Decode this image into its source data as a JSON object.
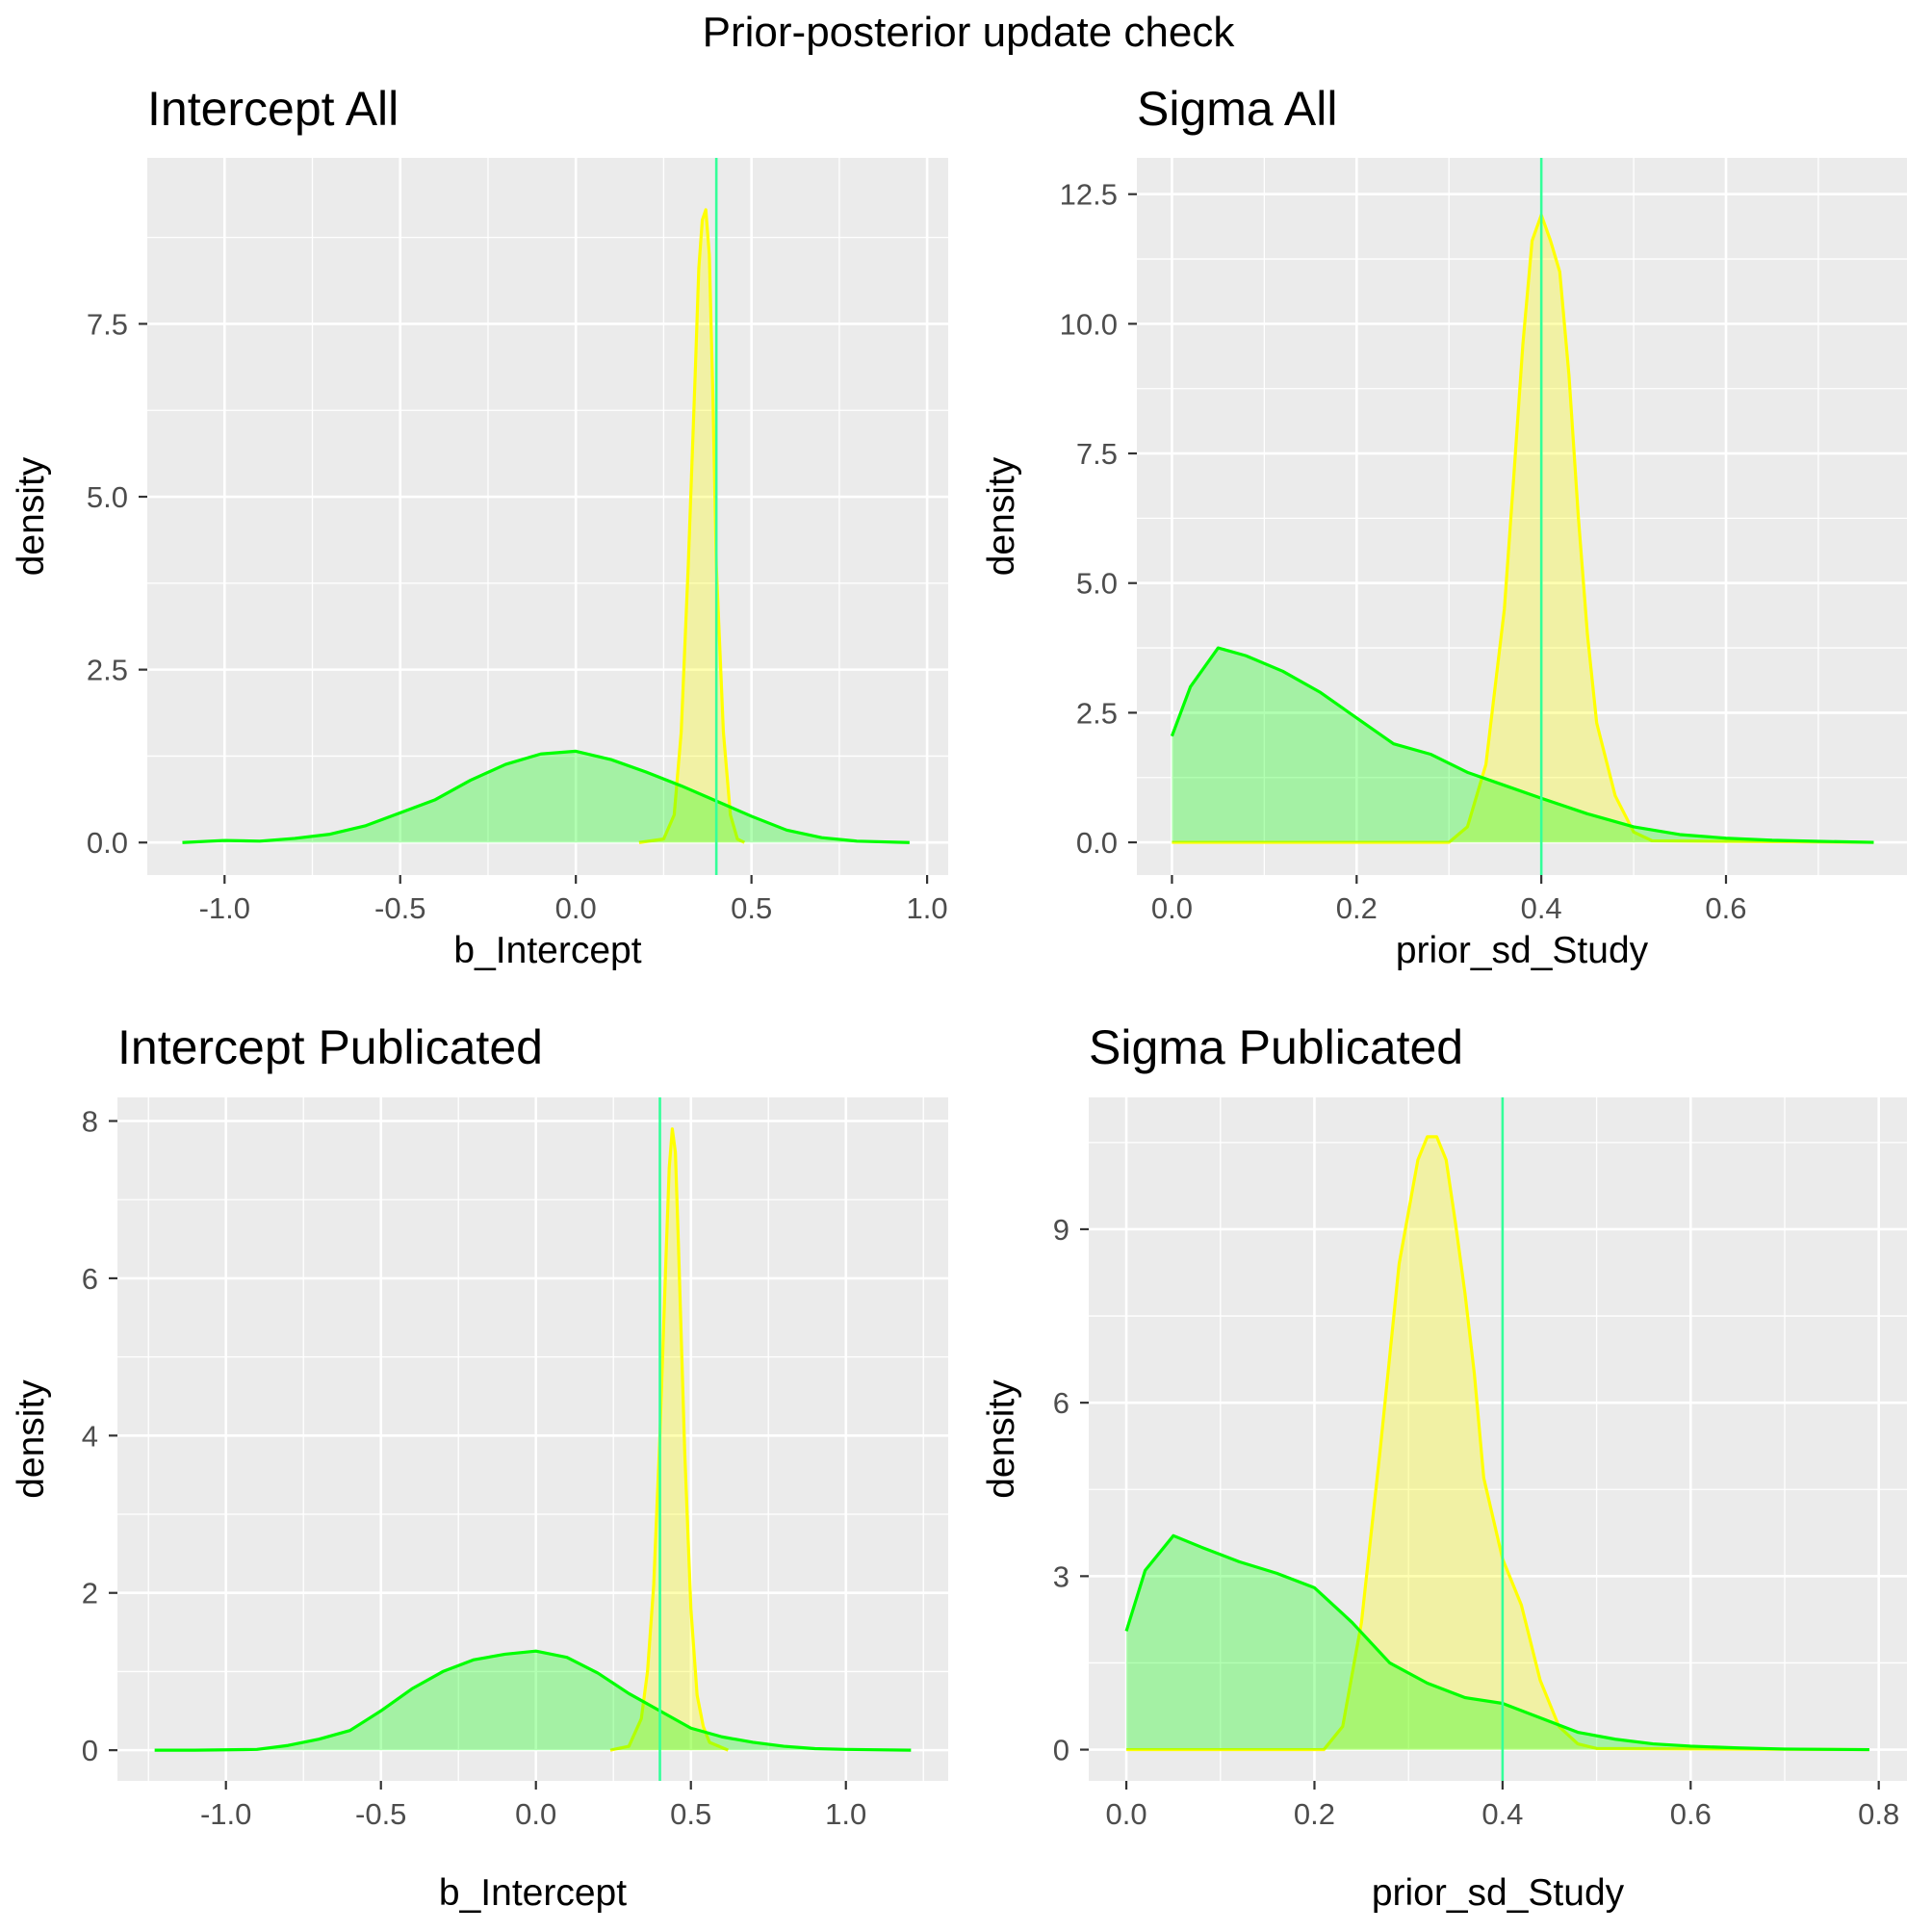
{
  "figure": {
    "title": "Prior-posterior update check"
  },
  "colors": {
    "panel_bg": "#EBEBEB",
    "grid": "#FFFFFF",
    "axis_text": "#4D4D4D",
    "prior_line": "#00FF00",
    "prior_fill": "#A6F09E",
    "posterior_line": "#FFFF00",
    "posterior_fill": "#EFF2A2",
    "overlap_fill": "#B8F55E",
    "vline": "#33FF99"
  },
  "chart_data": [
    {
      "type": "area",
      "title": "Intercept All",
      "xlabel": "b_Intercept",
      "ylabel": "density",
      "xlim": [
        -1.22,
        1.06
      ],
      "ylim": [
        -0.47,
        9.9
      ],
      "xticks": [
        -1.0,
        -0.5,
        0.0,
        0.5,
        1.0
      ],
      "xtick_labels": [
        "-1.0",
        "-0.5",
        "0.0",
        "0.5",
        "1.0"
      ],
      "yticks": [
        0.0,
        2.5,
        5.0,
        7.5
      ],
      "ytick_labels": [
        "0.0",
        "2.5",
        "5.0",
        "7.5"
      ],
      "vline": 0.4,
      "grid": true,
      "legend": "none",
      "series": [
        {
          "role": "prior",
          "x": [
            -1.12,
            -1.0,
            -0.9,
            -0.8,
            -0.7,
            -0.6,
            -0.5,
            -0.4,
            -0.3,
            -0.2,
            -0.1,
            0.0,
            0.1,
            0.2,
            0.3,
            0.4,
            0.5,
            0.6,
            0.7,
            0.8,
            0.95
          ],
          "y": [
            0.0,
            0.03,
            0.02,
            0.06,
            0.12,
            0.24,
            0.43,
            0.62,
            0.9,
            1.13,
            1.28,
            1.32,
            1.2,
            1.02,
            0.82,
            0.6,
            0.38,
            0.18,
            0.07,
            0.02,
            0.0
          ]
        },
        {
          "role": "posterior",
          "x": [
            0.18,
            0.25,
            0.28,
            0.3,
            0.32,
            0.34,
            0.35,
            0.36,
            0.37,
            0.38,
            0.39,
            0.4,
            0.42,
            0.44,
            0.46,
            0.48
          ],
          "y": [
            0.0,
            0.05,
            0.4,
            1.6,
            4.0,
            6.8,
            8.3,
            9.0,
            9.15,
            8.5,
            6.5,
            4.0,
            1.6,
            0.4,
            0.05,
            0.0
          ]
        }
      ]
    },
    {
      "type": "area",
      "title": "Sigma All",
      "xlabel": "prior_sd_Study",
      "ylabel": "density",
      "xlim": [
        -0.038,
        0.796
      ],
      "ylim": [
        -0.63,
        13.2
      ],
      "xticks": [
        0.0,
        0.2,
        0.4,
        0.6
      ],
      "xtick_labels": [
        "0.0",
        "0.2",
        "0.4",
        "0.6"
      ],
      "yticks": [
        0.0,
        2.5,
        5.0,
        7.5,
        10.0,
        12.5
      ],
      "ytick_labels": [
        "0.0",
        "2.5",
        "5.0",
        "7.5",
        "10.0",
        "12.5"
      ],
      "vline": 0.4,
      "grid": true,
      "legend": "none",
      "series": [
        {
          "role": "prior",
          "x": [
            0.0,
            0.02,
            0.05,
            0.08,
            0.12,
            0.16,
            0.2,
            0.24,
            0.28,
            0.32,
            0.36,
            0.4,
            0.45,
            0.5,
            0.55,
            0.6,
            0.65,
            0.7,
            0.76
          ],
          "y": [
            2.05,
            3.0,
            3.75,
            3.6,
            3.3,
            2.9,
            2.4,
            1.9,
            1.7,
            1.35,
            1.1,
            0.85,
            0.55,
            0.3,
            0.15,
            0.08,
            0.04,
            0.02,
            0.0
          ]
        },
        {
          "role": "posterior",
          "x": [
            0.0,
            0.3,
            0.32,
            0.34,
            0.36,
            0.37,
            0.38,
            0.39,
            0.4,
            0.41,
            0.42,
            0.43,
            0.44,
            0.45,
            0.46,
            0.47,
            0.48,
            0.5,
            0.52,
            0.76
          ],
          "y": [
            0.0,
            0.0,
            0.3,
            1.5,
            4.5,
            7.0,
            9.6,
            11.6,
            12.1,
            11.6,
            11.0,
            9.0,
            6.3,
            4.0,
            2.3,
            1.6,
            0.9,
            0.2,
            0.03,
            0.0
          ]
        }
      ]
    },
    {
      "type": "area",
      "title": "Intercept Publicated",
      "xlabel": "b_Intercept",
      "ylabel": "density",
      "xlim": [
        -1.35,
        1.33
      ],
      "ylim": [
        -0.39,
        8.3
      ],
      "xticks": [
        -1.0,
        -0.5,
        0.0,
        0.5,
        1.0
      ],
      "xtick_labels": [
        "-1.0",
        "-0.5",
        "0.0",
        "0.5",
        "1.0"
      ],
      "yticks": [
        0,
        2,
        4,
        6,
        8
      ],
      "ytick_labels": [
        "0",
        "2",
        "4",
        "6",
        "8"
      ],
      "vline": 0.4,
      "grid": true,
      "legend": "none",
      "series": [
        {
          "role": "prior",
          "x": [
            -1.23,
            -1.1,
            -0.9,
            -0.8,
            -0.7,
            -0.6,
            -0.5,
            -0.4,
            -0.3,
            -0.2,
            -0.1,
            0.0,
            0.1,
            0.2,
            0.3,
            0.4,
            0.5,
            0.6,
            0.7,
            0.8,
            0.9,
            1.0,
            1.21
          ],
          "y": [
            0.0,
            0.0,
            0.01,
            0.06,
            0.14,
            0.25,
            0.5,
            0.78,
            1.0,
            1.15,
            1.22,
            1.26,
            1.18,
            0.98,
            0.72,
            0.5,
            0.28,
            0.17,
            0.1,
            0.05,
            0.02,
            0.01,
            0.0
          ]
        },
        {
          "role": "posterior",
          "x": [
            0.24,
            0.3,
            0.34,
            0.36,
            0.38,
            0.4,
            0.42,
            0.43,
            0.44,
            0.45,
            0.46,
            0.48,
            0.5,
            0.52,
            0.54,
            0.56,
            0.62
          ],
          "y": [
            0.0,
            0.05,
            0.4,
            1.0,
            2.1,
            4.0,
            6.3,
            7.4,
            7.9,
            7.6,
            6.4,
            3.8,
            1.8,
            0.7,
            0.3,
            0.1,
            0.0
          ]
        }
      ]
    },
    {
      "type": "area",
      "title": "Sigma Publicated",
      "xlabel": "prior_sd_Study",
      "ylabel": "density",
      "xlim": [
        -0.04,
        0.83
      ],
      "ylim": [
        -0.54,
        11.28
      ],
      "xticks": [
        0.0,
        0.2,
        0.4,
        0.6,
        0.8
      ],
      "xtick_labels": [
        "0.0",
        "0.2",
        "0.4",
        "0.6",
        "0.8"
      ],
      "yticks": [
        0,
        3,
        6,
        9
      ],
      "ytick_labels": [
        "0",
        "3",
        "6",
        "9"
      ],
      "vline": 0.4,
      "grid": true,
      "legend": "none",
      "series": [
        {
          "role": "prior",
          "x": [
            0.0,
            0.02,
            0.05,
            0.08,
            0.12,
            0.16,
            0.2,
            0.24,
            0.28,
            0.32,
            0.36,
            0.4,
            0.44,
            0.48,
            0.52,
            0.56,
            0.6,
            0.65,
            0.7,
            0.79
          ],
          "y": [
            2.05,
            3.1,
            3.7,
            3.5,
            3.25,
            3.05,
            2.8,
            2.2,
            1.5,
            1.15,
            0.9,
            0.8,
            0.55,
            0.3,
            0.18,
            0.1,
            0.06,
            0.03,
            0.01,
            0.0
          ]
        },
        {
          "role": "posterior",
          "x": [
            0.0,
            0.21,
            0.23,
            0.25,
            0.27,
            0.29,
            0.31,
            0.32,
            0.33,
            0.34,
            0.35,
            0.36,
            0.37,
            0.38,
            0.4,
            0.42,
            0.44,
            0.46,
            0.48,
            0.5,
            0.79
          ],
          "y": [
            0.0,
            0.0,
            0.4,
            2.2,
            5.2,
            8.4,
            10.2,
            10.6,
            10.6,
            10.2,
            9.1,
            7.9,
            6.5,
            4.7,
            3.3,
            2.5,
            1.2,
            0.4,
            0.1,
            0.02,
            0.0
          ]
        }
      ]
    }
  ]
}
